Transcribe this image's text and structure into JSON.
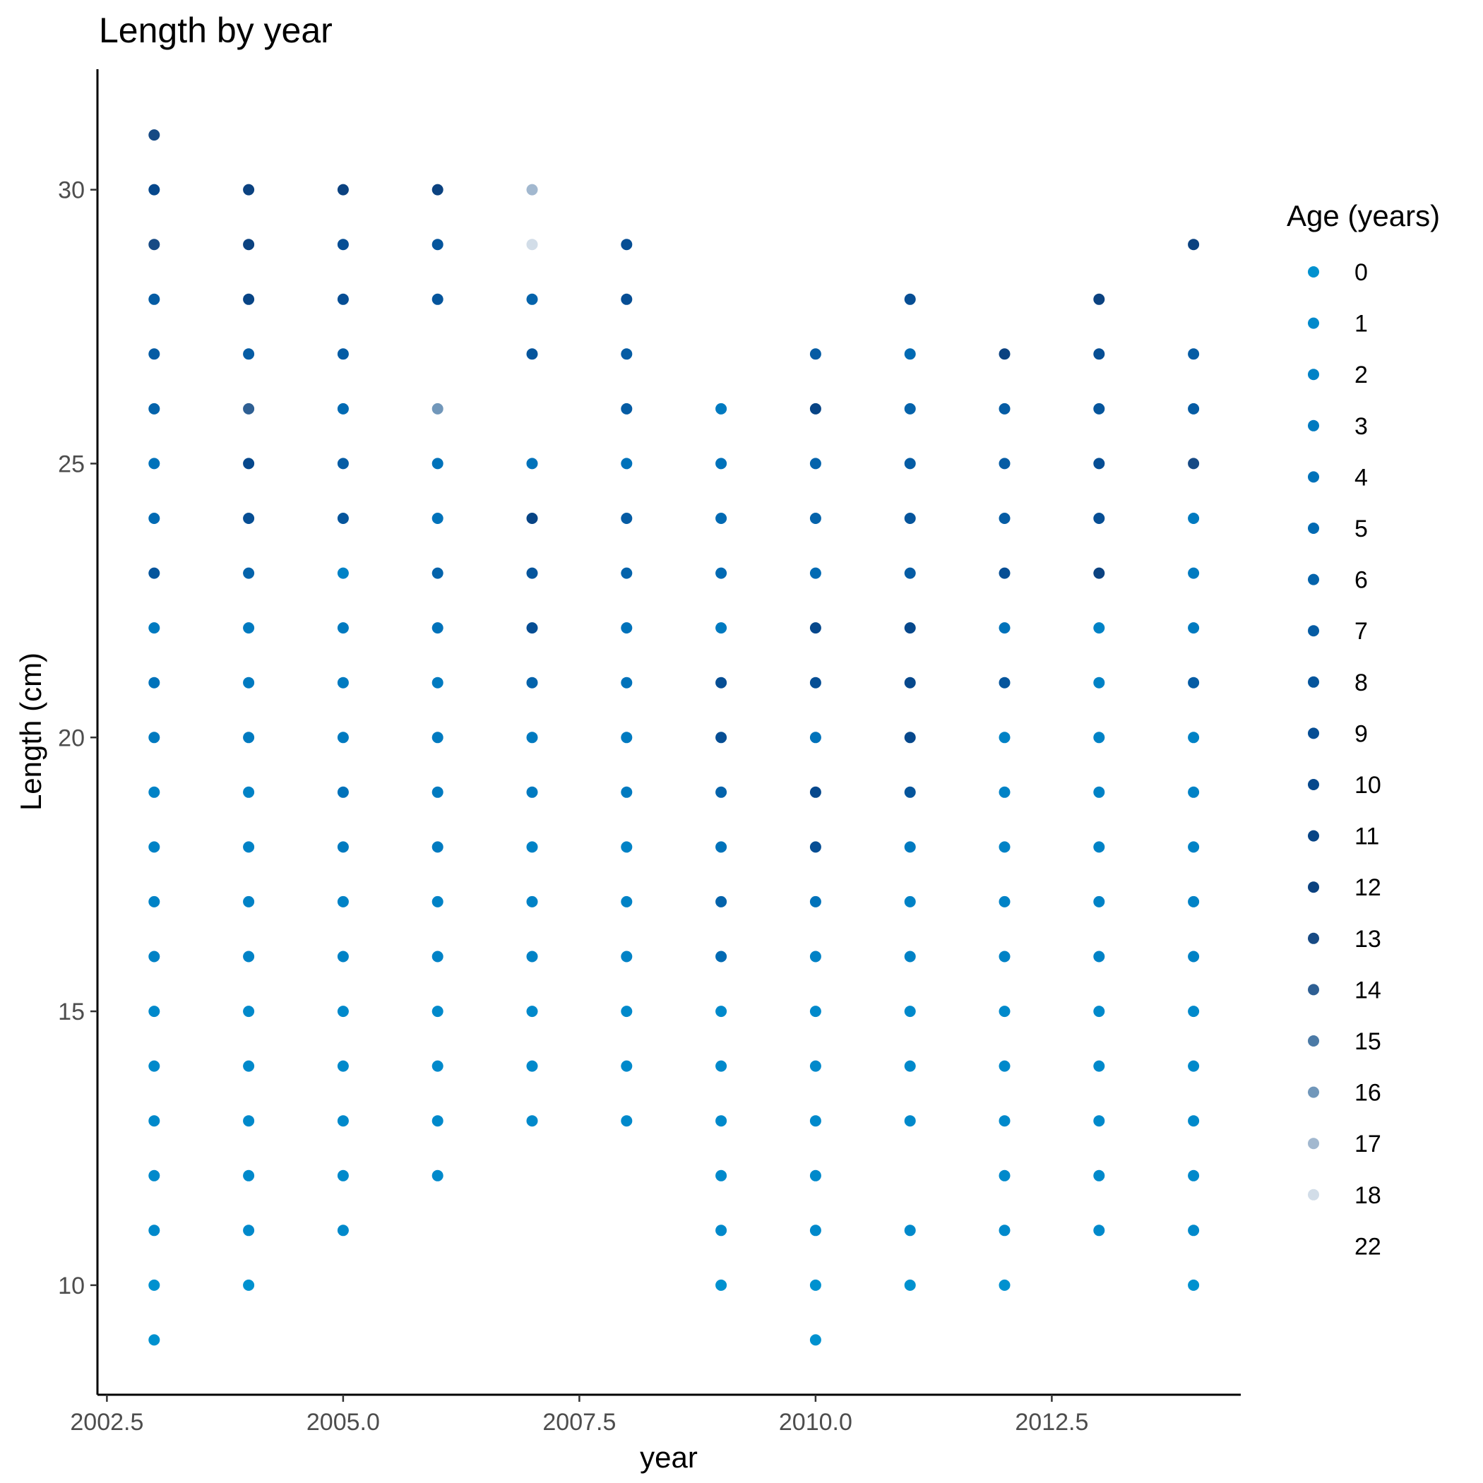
{
  "chart_data": {
    "type": "scatter",
    "title": "Length by year",
    "xlabel": "year",
    "ylabel": "Length (cm)",
    "xlim": [
      2002.4,
      2014.5
    ],
    "ylim": [
      8.0,
      32.2
    ],
    "xticks": [
      2002.5,
      2005.0,
      2007.5,
      2010.0,
      2012.5
    ],
    "xtick_labels": [
      "2002.5",
      "2005.0",
      "2007.5",
      "2010.0",
      "2012.5"
    ],
    "yticks": [
      10,
      15,
      20,
      25,
      30
    ],
    "ytick_labels": [
      "10",
      "15",
      "20",
      "25",
      "30"
    ],
    "grid": false,
    "legend": {
      "title": "Age (years)",
      "position": "right",
      "entries": [
        {
          "label": "0",
          "color": "#0091cf"
        },
        {
          "label": "1",
          "color": "#0089cb"
        },
        {
          "label": "2",
          "color": "#0082c6"
        },
        {
          "label": "3",
          "color": "#007ac0"
        },
        {
          "label": "4",
          "color": "#0072ba"
        },
        {
          "label": "5",
          "color": "#016ab3"
        },
        {
          "label": "6",
          "color": "#0463ab"
        },
        {
          "label": "7",
          "color": "#055ca4"
        },
        {
          "label": "8",
          "color": "#05559c"
        },
        {
          "label": "9",
          "color": "#064e94"
        },
        {
          "label": "10",
          "color": "#06488c"
        },
        {
          "label": "11",
          "color": "#074485"
        },
        {
          "label": "12",
          "color": "#0b4280"
        },
        {
          "label": "13",
          "color": "#174a84"
        },
        {
          "label": "14",
          "color": "#2e5f93"
        },
        {
          "label": "15",
          "color": "#4b7aa6"
        },
        {
          "label": "16",
          "color": "#7197ba"
        },
        {
          "label": "17",
          "color": "#a2b8cf"
        },
        {
          "label": "18",
          "color": "#d2dde8"
        },
        {
          "label": "22",
          "color": "#ffffff"
        }
      ]
    },
    "points": [
      {
        "x": 2003,
        "y": 9,
        "age": "0"
      },
      {
        "x": 2003,
        "y": 10,
        "age": "0"
      },
      {
        "x": 2003,
        "y": 11,
        "age": "1"
      },
      {
        "x": 2003,
        "y": 12,
        "age": "1"
      },
      {
        "x": 2003,
        "y": 13,
        "age": "1"
      },
      {
        "x": 2003,
        "y": 14,
        "age": "1"
      },
      {
        "x": 2003,
        "y": 15,
        "age": "1"
      },
      {
        "x": 2003,
        "y": 16,
        "age": "2"
      },
      {
        "x": 2003,
        "y": 17,
        "age": "2"
      },
      {
        "x": 2003,
        "y": 18,
        "age": "2"
      },
      {
        "x": 2003,
        "y": 19,
        "age": "2"
      },
      {
        "x": 2003,
        "y": 20,
        "age": "3"
      },
      {
        "x": 2003,
        "y": 21,
        "age": "4"
      },
      {
        "x": 2003,
        "y": 22,
        "age": "3"
      },
      {
        "x": 2003,
        "y": 23,
        "age": "8"
      },
      {
        "x": 2003,
        "y": 24,
        "age": "5"
      },
      {
        "x": 2003,
        "y": 25,
        "age": "4"
      },
      {
        "x": 2003,
        "y": 26,
        "age": "6"
      },
      {
        "x": 2003,
        "y": 27,
        "age": "7"
      },
      {
        "x": 2003,
        "y": 28,
        "age": "7"
      },
      {
        "x": 2003,
        "y": 29,
        "age": "13"
      },
      {
        "x": 2003,
        "y": 30,
        "age": "10"
      },
      {
        "x": 2003,
        "y": 31,
        "age": "13"
      },
      {
        "x": 2004,
        "y": 10,
        "age": "0"
      },
      {
        "x": 2004,
        "y": 11,
        "age": "1"
      },
      {
        "x": 2004,
        "y": 12,
        "age": "1"
      },
      {
        "x": 2004,
        "y": 13,
        "age": "1"
      },
      {
        "x": 2004,
        "y": 14,
        "age": "1"
      },
      {
        "x": 2004,
        "y": 15,
        "age": "1"
      },
      {
        "x": 2004,
        "y": 16,
        "age": "2"
      },
      {
        "x": 2004,
        "y": 17,
        "age": "2"
      },
      {
        "x": 2004,
        "y": 18,
        "age": "2"
      },
      {
        "x": 2004,
        "y": 19,
        "age": "2"
      },
      {
        "x": 2004,
        "y": 20,
        "age": "3"
      },
      {
        "x": 2004,
        "y": 21,
        "age": "3"
      },
      {
        "x": 2004,
        "y": 22,
        "age": "3"
      },
      {
        "x": 2004,
        "y": 23,
        "age": "6"
      },
      {
        "x": 2004,
        "y": 24,
        "age": "9"
      },
      {
        "x": 2004,
        "y": 25,
        "age": "10"
      },
      {
        "x": 2004,
        "y": 26,
        "age": "14"
      },
      {
        "x": 2004,
        "y": 27,
        "age": "7"
      },
      {
        "x": 2004,
        "y": 28,
        "age": "11"
      },
      {
        "x": 2004,
        "y": 29,
        "age": "12"
      },
      {
        "x": 2004,
        "y": 30,
        "age": "12"
      },
      {
        "x": 2005,
        "y": 11,
        "age": "1"
      },
      {
        "x": 2005,
        "y": 12,
        "age": "1"
      },
      {
        "x": 2005,
        "y": 13,
        "age": "1"
      },
      {
        "x": 2005,
        "y": 14,
        "age": "1"
      },
      {
        "x": 2005,
        "y": 15,
        "age": "1"
      },
      {
        "x": 2005,
        "y": 16,
        "age": "2"
      },
      {
        "x": 2005,
        "y": 17,
        "age": "2"
      },
      {
        "x": 2005,
        "y": 18,
        "age": "3"
      },
      {
        "x": 2005,
        "y": 19,
        "age": "4"
      },
      {
        "x": 2005,
        "y": 20,
        "age": "3"
      },
      {
        "x": 2005,
        "y": 21,
        "age": "3"
      },
      {
        "x": 2005,
        "y": 22,
        "age": "3"
      },
      {
        "x": 2005,
        "y": 23,
        "age": "2"
      },
      {
        "x": 2005,
        "y": 24,
        "age": "8"
      },
      {
        "x": 2005,
        "y": 25,
        "age": "7"
      },
      {
        "x": 2005,
        "y": 26,
        "age": "5"
      },
      {
        "x": 2005,
        "y": 27,
        "age": "7"
      },
      {
        "x": 2005,
        "y": 28,
        "age": "9"
      },
      {
        "x": 2005,
        "y": 29,
        "age": "9"
      },
      {
        "x": 2005,
        "y": 30,
        "age": "12"
      },
      {
        "x": 2006,
        "y": 12,
        "age": "1"
      },
      {
        "x": 2006,
        "y": 13,
        "age": "1"
      },
      {
        "x": 2006,
        "y": 14,
        "age": "1"
      },
      {
        "x": 2006,
        "y": 15,
        "age": "1"
      },
      {
        "x": 2006,
        "y": 16,
        "age": "2"
      },
      {
        "x": 2006,
        "y": 17,
        "age": "2"
      },
      {
        "x": 2006,
        "y": 18,
        "age": "3"
      },
      {
        "x": 2006,
        "y": 19,
        "age": "3"
      },
      {
        "x": 2006,
        "y": 20,
        "age": "3"
      },
      {
        "x": 2006,
        "y": 21,
        "age": "3"
      },
      {
        "x": 2006,
        "y": 22,
        "age": "4"
      },
      {
        "x": 2006,
        "y": 23,
        "age": "6"
      },
      {
        "x": 2006,
        "y": 24,
        "age": "4"
      },
      {
        "x": 2006,
        "y": 25,
        "age": "4"
      },
      {
        "x": 2006,
        "y": 26,
        "age": "16"
      },
      {
        "x": 2006,
        "y": 28,
        "age": "8"
      },
      {
        "x": 2006,
        "y": 29,
        "age": "8"
      },
      {
        "x": 2006,
        "y": 30,
        "age": "12"
      },
      {
        "x": 2007,
        "y": 13,
        "age": "1"
      },
      {
        "x": 2007,
        "y": 14,
        "age": "1"
      },
      {
        "x": 2007,
        "y": 15,
        "age": "1"
      },
      {
        "x": 2007,
        "y": 16,
        "age": "2"
      },
      {
        "x": 2007,
        "y": 17,
        "age": "2"
      },
      {
        "x": 2007,
        "y": 18,
        "age": "2"
      },
      {
        "x": 2007,
        "y": 19,
        "age": "3"
      },
      {
        "x": 2007,
        "y": 20,
        "age": "3"
      },
      {
        "x": 2007,
        "y": 21,
        "age": "6"
      },
      {
        "x": 2007,
        "y": 22,
        "age": "9"
      },
      {
        "x": 2007,
        "y": 23,
        "age": "8"
      },
      {
        "x": 2007,
        "y": 24,
        "age": "11"
      },
      {
        "x": 2007,
        "y": 25,
        "age": "4"
      },
      {
        "x": 2007,
        "y": 27,
        "age": "8"
      },
      {
        "x": 2007,
        "y": 28,
        "age": "6"
      },
      {
        "x": 2007,
        "y": 29,
        "age": "18"
      },
      {
        "x": 2007,
        "y": 30,
        "age": "17"
      },
      {
        "x": 2008,
        "y": 13,
        "age": "1"
      },
      {
        "x": 2008,
        "y": 14,
        "age": "1"
      },
      {
        "x": 2008,
        "y": 15,
        "age": "1"
      },
      {
        "x": 2008,
        "y": 16,
        "age": "2"
      },
      {
        "x": 2008,
        "y": 17,
        "age": "2"
      },
      {
        "x": 2008,
        "y": 18,
        "age": "2"
      },
      {
        "x": 2008,
        "y": 19,
        "age": "3"
      },
      {
        "x": 2008,
        "y": 20,
        "age": "3"
      },
      {
        "x": 2008,
        "y": 21,
        "age": "4"
      },
      {
        "x": 2008,
        "y": 22,
        "age": "4"
      },
      {
        "x": 2008,
        "y": 23,
        "age": "6"
      },
      {
        "x": 2008,
        "y": 24,
        "age": "7"
      },
      {
        "x": 2008,
        "y": 25,
        "age": "4"
      },
      {
        "x": 2008,
        "y": 26,
        "age": "7"
      },
      {
        "x": 2008,
        "y": 27,
        "age": "7"
      },
      {
        "x": 2008,
        "y": 28,
        "age": "9"
      },
      {
        "x": 2008,
        "y": 29,
        "age": "9"
      },
      {
        "x": 2009,
        "y": 10,
        "age": "0"
      },
      {
        "x": 2009,
        "y": 11,
        "age": "1"
      },
      {
        "x": 2009,
        "y": 12,
        "age": "1"
      },
      {
        "x": 2009,
        "y": 13,
        "age": "1"
      },
      {
        "x": 2009,
        "y": 14,
        "age": "1"
      },
      {
        "x": 2009,
        "y": 15,
        "age": "1"
      },
      {
        "x": 2009,
        "y": 16,
        "age": "5"
      },
      {
        "x": 2009,
        "y": 17,
        "age": "6"
      },
      {
        "x": 2009,
        "y": 18,
        "age": "4"
      },
      {
        "x": 2009,
        "y": 19,
        "age": "6"
      },
      {
        "x": 2009,
        "y": 20,
        "age": "9"
      },
      {
        "x": 2009,
        "y": 21,
        "age": "9"
      },
      {
        "x": 2009,
        "y": 22,
        "age": "3"
      },
      {
        "x": 2009,
        "y": 23,
        "age": "5"
      },
      {
        "x": 2009,
        "y": 24,
        "age": "5"
      },
      {
        "x": 2009,
        "y": 25,
        "age": "4"
      },
      {
        "x": 2009,
        "y": 26,
        "age": "3"
      },
      {
        "x": 2010,
        "y": 9,
        "age": "0"
      },
      {
        "x": 2010,
        "y": 10,
        "age": "0"
      },
      {
        "x": 2010,
        "y": 11,
        "age": "1"
      },
      {
        "x": 2010,
        "y": 12,
        "age": "1"
      },
      {
        "x": 2010,
        "y": 13,
        "age": "1"
      },
      {
        "x": 2010,
        "y": 14,
        "age": "1"
      },
      {
        "x": 2010,
        "y": 15,
        "age": "1"
      },
      {
        "x": 2010,
        "y": 16,
        "age": "2"
      },
      {
        "x": 2010,
        "y": 17,
        "age": "4"
      },
      {
        "x": 2010,
        "y": 18,
        "age": "9"
      },
      {
        "x": 2010,
        "y": 19,
        "age": "10"
      },
      {
        "x": 2010,
        "y": 20,
        "age": "4"
      },
      {
        "x": 2010,
        "y": 21,
        "age": "9"
      },
      {
        "x": 2010,
        "y": 22,
        "age": "10"
      },
      {
        "x": 2010,
        "y": 23,
        "age": "5"
      },
      {
        "x": 2010,
        "y": 24,
        "age": "6"
      },
      {
        "x": 2010,
        "y": 25,
        "age": "6"
      },
      {
        "x": 2010,
        "y": 26,
        "age": "11"
      },
      {
        "x": 2010,
        "y": 27,
        "age": "7"
      },
      {
        "x": 2011,
        "y": 10,
        "age": "0"
      },
      {
        "x": 2011,
        "y": 11,
        "age": "1"
      },
      {
        "x": 2011,
        "y": 13,
        "age": "1"
      },
      {
        "x": 2011,
        "y": 14,
        "age": "1"
      },
      {
        "x": 2011,
        "y": 15,
        "age": "1"
      },
      {
        "x": 2011,
        "y": 16,
        "age": "2"
      },
      {
        "x": 2011,
        "y": 17,
        "age": "2"
      },
      {
        "x": 2011,
        "y": 18,
        "age": "3"
      },
      {
        "x": 2011,
        "y": 19,
        "age": "8"
      },
      {
        "x": 2011,
        "y": 20,
        "age": "10"
      },
      {
        "x": 2011,
        "y": 21,
        "age": "10"
      },
      {
        "x": 2011,
        "y": 22,
        "age": "10"
      },
      {
        "x": 2011,
        "y": 23,
        "age": "7"
      },
      {
        "x": 2011,
        "y": 24,
        "age": "8"
      },
      {
        "x": 2011,
        "y": 25,
        "age": "7"
      },
      {
        "x": 2011,
        "y": 26,
        "age": "6"
      },
      {
        "x": 2011,
        "y": 27,
        "age": "5"
      },
      {
        "x": 2011,
        "y": 28,
        "age": "9"
      },
      {
        "x": 2012,
        "y": 10,
        "age": "0"
      },
      {
        "x": 2012,
        "y": 11,
        "age": "1"
      },
      {
        "x": 2012,
        "y": 12,
        "age": "1"
      },
      {
        "x": 2012,
        "y": 13,
        "age": "1"
      },
      {
        "x": 2012,
        "y": 14,
        "age": "1"
      },
      {
        "x": 2012,
        "y": 15,
        "age": "1"
      },
      {
        "x": 2012,
        "y": 16,
        "age": "2"
      },
      {
        "x": 2012,
        "y": 17,
        "age": "2"
      },
      {
        "x": 2012,
        "y": 18,
        "age": "2"
      },
      {
        "x": 2012,
        "y": 19,
        "age": "2"
      },
      {
        "x": 2012,
        "y": 20,
        "age": "2"
      },
      {
        "x": 2012,
        "y": 21,
        "age": "8"
      },
      {
        "x": 2012,
        "y": 22,
        "age": "4"
      },
      {
        "x": 2012,
        "y": 23,
        "age": "9"
      },
      {
        "x": 2012,
        "y": 24,
        "age": "7"
      },
      {
        "x": 2012,
        "y": 25,
        "age": "7"
      },
      {
        "x": 2012,
        "y": 26,
        "age": "7"
      },
      {
        "x": 2012,
        "y": 27,
        "age": "12"
      },
      {
        "x": 2013,
        "y": 11,
        "age": "1"
      },
      {
        "x": 2013,
        "y": 12,
        "age": "1"
      },
      {
        "x": 2013,
        "y": 13,
        "age": "1"
      },
      {
        "x": 2013,
        "y": 14,
        "age": "1"
      },
      {
        "x": 2013,
        "y": 15,
        "age": "1"
      },
      {
        "x": 2013,
        "y": 16,
        "age": "2"
      },
      {
        "x": 2013,
        "y": 17,
        "age": "2"
      },
      {
        "x": 2013,
        "y": 18,
        "age": "2"
      },
      {
        "x": 2013,
        "y": 19,
        "age": "2"
      },
      {
        "x": 2013,
        "y": 20,
        "age": "2"
      },
      {
        "x": 2013,
        "y": 21,
        "age": "2"
      },
      {
        "x": 2013,
        "y": 22,
        "age": "2"
      },
      {
        "x": 2013,
        "y": 23,
        "age": "12"
      },
      {
        "x": 2013,
        "y": 24,
        "age": "9"
      },
      {
        "x": 2013,
        "y": 25,
        "age": "9"
      },
      {
        "x": 2013,
        "y": 26,
        "age": "8"
      },
      {
        "x": 2013,
        "y": 27,
        "age": "9"
      },
      {
        "x": 2013,
        "y": 28,
        "age": "12"
      },
      {
        "x": 2014,
        "y": 10,
        "age": "0"
      },
      {
        "x": 2014,
        "y": 11,
        "age": "1"
      },
      {
        "x": 2014,
        "y": 12,
        "age": "1"
      },
      {
        "x": 2014,
        "y": 13,
        "age": "1"
      },
      {
        "x": 2014,
        "y": 14,
        "age": "1"
      },
      {
        "x": 2014,
        "y": 15,
        "age": "1"
      },
      {
        "x": 2014,
        "y": 16,
        "age": "2"
      },
      {
        "x": 2014,
        "y": 17,
        "age": "2"
      },
      {
        "x": 2014,
        "y": 18,
        "age": "2"
      },
      {
        "x": 2014,
        "y": 19,
        "age": "2"
      },
      {
        "x": 2014,
        "y": 20,
        "age": "2"
      },
      {
        "x": 2014,
        "y": 21,
        "age": "7"
      },
      {
        "x": 2014,
        "y": 22,
        "age": "3"
      },
      {
        "x": 2014,
        "y": 23,
        "age": "3"
      },
      {
        "x": 2014,
        "y": 24,
        "age": "3"
      },
      {
        "x": 2014,
        "y": 25,
        "age": "13"
      },
      {
        "x": 2014,
        "y": 26,
        "age": "7"
      },
      {
        "x": 2014,
        "y": 27,
        "age": "7"
      },
      {
        "x": 2014,
        "y": 29,
        "age": "12"
      }
    ]
  }
}
